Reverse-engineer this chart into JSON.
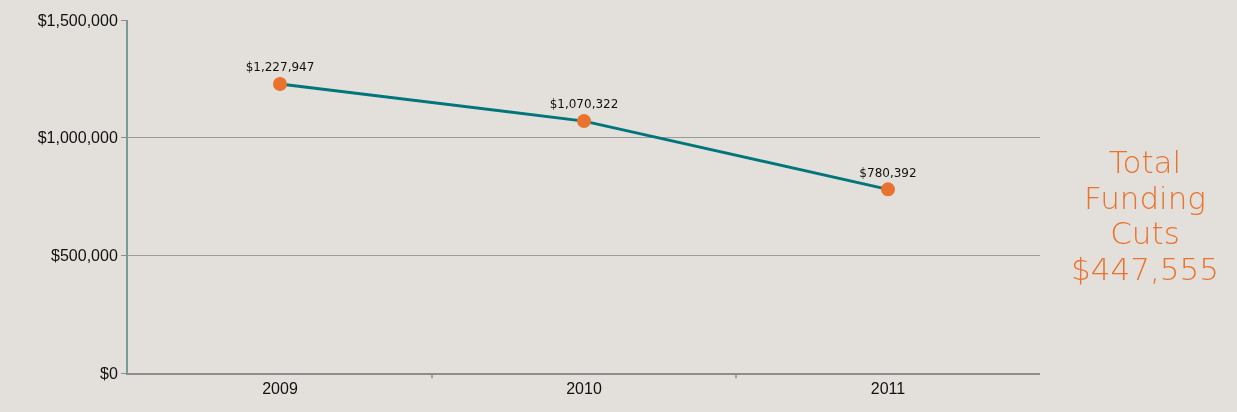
{
  "chart_data": {
    "type": "line",
    "categories": [
      "2009",
      "2010",
      "2011"
    ],
    "series": [
      {
        "color": "#00767a",
        "colors": [
          "#e8732f",
          "#e8732f",
          "#e8732f"
        ],
        "values": [
          1227947,
          1070322,
          780392
        ],
        "value_labels": [
          "$1,227,947",
          "$1,070,322",
          "$780,392"
        ]
      }
    ],
    "ylim": [
      0,
      1500000
    ],
    "yticks": [
      {
        "value": 0,
        "label": "$0"
      },
      {
        "value": 500000,
        "label": "$500,000"
      },
      {
        "value": 1000000,
        "label": "$1,000,000"
      },
      {
        "value": 1500000,
        "label": "$1,500,000"
      }
    ],
    "grid": "y",
    "legend": false,
    "marker": "circle",
    "line_style": "solid",
    "annotations": [
      "Total Funding Cuts $447,555"
    ]
  }
}
